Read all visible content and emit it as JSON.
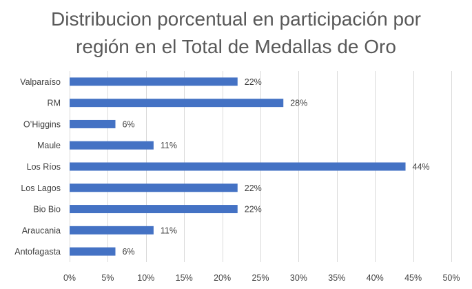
{
  "chart_data": {
    "type": "bar",
    "orientation": "horizontal",
    "title_lines": [
      "Distribucion porcentual en participación por",
      "región en el Total de Medallas de Oro"
    ],
    "categories": [
      "Valparaíso",
      "RM",
      "O’Higgins",
      "Maule",
      "Los Ríos",
      "Los Lagos",
      "Bio Bio",
      "Araucania",
      "Antofagasta"
    ],
    "values": [
      22,
      28,
      6,
      11,
      44,
      22,
      22,
      11,
      6
    ],
    "data_labels": [
      "22%",
      "28%",
      "6%",
      "11%",
      "44%",
      "22%",
      "22%",
      "11%",
      "6%"
    ],
    "xlim": [
      0,
      50
    ],
    "xticks": [
      0,
      5,
      10,
      15,
      20,
      25,
      30,
      35,
      40,
      45,
      50
    ],
    "xtick_labels": [
      "0%",
      "5%",
      "10%",
      "15%",
      "20%",
      "25%",
      "30%",
      "35%",
      "40%",
      "45%",
      "50%"
    ],
    "grid": true,
    "xlabel": "",
    "ylabel": "",
    "bar_color": "#4472C4",
    "grid_color": "#D9D9D9"
  }
}
